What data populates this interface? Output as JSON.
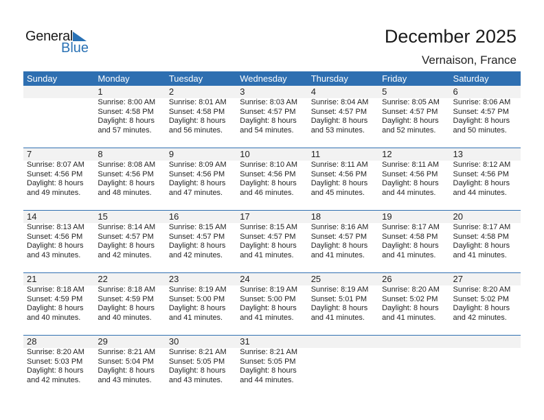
{
  "logo": {
    "word1": "General",
    "word2": "Blue"
  },
  "header": {
    "title": "December 2025",
    "location": "Vernaison, France"
  },
  "colors": {
    "header_bg": "#2e6fb1",
    "band_bg": "#f2f2f2",
    "logo_blue": "#2a72b5"
  },
  "weekdays": [
    "Sunday",
    "Monday",
    "Tuesday",
    "Wednesday",
    "Thursday",
    "Friday",
    "Saturday"
  ],
  "weeks": [
    [
      null,
      {
        "day": "1",
        "sunrise": "Sunrise: 8:00 AM",
        "sunset": "Sunset: 4:58 PM",
        "daylight": "Daylight: 8 hours",
        "minutes": "and 57 minutes."
      },
      {
        "day": "2",
        "sunrise": "Sunrise: 8:01 AM",
        "sunset": "Sunset: 4:58 PM",
        "daylight": "Daylight: 8 hours",
        "minutes": "and 56 minutes."
      },
      {
        "day": "3",
        "sunrise": "Sunrise: 8:03 AM",
        "sunset": "Sunset: 4:57 PM",
        "daylight": "Daylight: 8 hours",
        "minutes": "and 54 minutes."
      },
      {
        "day": "4",
        "sunrise": "Sunrise: 8:04 AM",
        "sunset": "Sunset: 4:57 PM",
        "daylight": "Daylight: 8 hours",
        "minutes": "and 53 minutes."
      },
      {
        "day": "5",
        "sunrise": "Sunrise: 8:05 AM",
        "sunset": "Sunset: 4:57 PM",
        "daylight": "Daylight: 8 hours",
        "minutes": "and 52 minutes."
      },
      {
        "day": "6",
        "sunrise": "Sunrise: 8:06 AM",
        "sunset": "Sunset: 4:57 PM",
        "daylight": "Daylight: 8 hours",
        "minutes": "and 50 minutes."
      }
    ],
    [
      {
        "day": "7",
        "sunrise": "Sunrise: 8:07 AM",
        "sunset": "Sunset: 4:56 PM",
        "daylight": "Daylight: 8 hours",
        "minutes": "and 49 minutes."
      },
      {
        "day": "8",
        "sunrise": "Sunrise: 8:08 AM",
        "sunset": "Sunset: 4:56 PM",
        "daylight": "Daylight: 8 hours",
        "minutes": "and 48 minutes."
      },
      {
        "day": "9",
        "sunrise": "Sunrise: 8:09 AM",
        "sunset": "Sunset: 4:56 PM",
        "daylight": "Daylight: 8 hours",
        "minutes": "and 47 minutes."
      },
      {
        "day": "10",
        "sunrise": "Sunrise: 8:10 AM",
        "sunset": "Sunset: 4:56 PM",
        "daylight": "Daylight: 8 hours",
        "minutes": "and 46 minutes."
      },
      {
        "day": "11",
        "sunrise": "Sunrise: 8:11 AM",
        "sunset": "Sunset: 4:56 PM",
        "daylight": "Daylight: 8 hours",
        "minutes": "and 45 minutes."
      },
      {
        "day": "12",
        "sunrise": "Sunrise: 8:11 AM",
        "sunset": "Sunset: 4:56 PM",
        "daylight": "Daylight: 8 hours",
        "minutes": "and 44 minutes."
      },
      {
        "day": "13",
        "sunrise": "Sunrise: 8:12 AM",
        "sunset": "Sunset: 4:56 PM",
        "daylight": "Daylight: 8 hours",
        "minutes": "and 44 minutes."
      }
    ],
    [
      {
        "day": "14",
        "sunrise": "Sunrise: 8:13 AM",
        "sunset": "Sunset: 4:56 PM",
        "daylight": "Daylight: 8 hours",
        "minutes": "and 43 minutes."
      },
      {
        "day": "15",
        "sunrise": "Sunrise: 8:14 AM",
        "sunset": "Sunset: 4:57 PM",
        "daylight": "Daylight: 8 hours",
        "minutes": "and 42 minutes."
      },
      {
        "day": "16",
        "sunrise": "Sunrise: 8:15 AM",
        "sunset": "Sunset: 4:57 PM",
        "daylight": "Daylight: 8 hours",
        "minutes": "and 42 minutes."
      },
      {
        "day": "17",
        "sunrise": "Sunrise: 8:15 AM",
        "sunset": "Sunset: 4:57 PM",
        "daylight": "Daylight: 8 hours",
        "minutes": "and 41 minutes."
      },
      {
        "day": "18",
        "sunrise": "Sunrise: 8:16 AM",
        "sunset": "Sunset: 4:57 PM",
        "daylight": "Daylight: 8 hours",
        "minutes": "and 41 minutes."
      },
      {
        "day": "19",
        "sunrise": "Sunrise: 8:17 AM",
        "sunset": "Sunset: 4:58 PM",
        "daylight": "Daylight: 8 hours",
        "minutes": "and 41 minutes."
      },
      {
        "day": "20",
        "sunrise": "Sunrise: 8:17 AM",
        "sunset": "Sunset: 4:58 PM",
        "daylight": "Daylight: 8 hours",
        "minutes": "and 41 minutes."
      }
    ],
    [
      {
        "day": "21",
        "sunrise": "Sunrise: 8:18 AM",
        "sunset": "Sunset: 4:59 PM",
        "daylight": "Daylight: 8 hours",
        "minutes": "and 40 minutes."
      },
      {
        "day": "22",
        "sunrise": "Sunrise: 8:18 AM",
        "sunset": "Sunset: 4:59 PM",
        "daylight": "Daylight: 8 hours",
        "minutes": "and 40 minutes."
      },
      {
        "day": "23",
        "sunrise": "Sunrise: 8:19 AM",
        "sunset": "Sunset: 5:00 PM",
        "daylight": "Daylight: 8 hours",
        "minutes": "and 41 minutes."
      },
      {
        "day": "24",
        "sunrise": "Sunrise: 8:19 AM",
        "sunset": "Sunset: 5:00 PM",
        "daylight": "Daylight: 8 hours",
        "minutes": "and 41 minutes."
      },
      {
        "day": "25",
        "sunrise": "Sunrise: 8:19 AM",
        "sunset": "Sunset: 5:01 PM",
        "daylight": "Daylight: 8 hours",
        "minutes": "and 41 minutes."
      },
      {
        "day": "26",
        "sunrise": "Sunrise: 8:20 AM",
        "sunset": "Sunset: 5:02 PM",
        "daylight": "Daylight: 8 hours",
        "minutes": "and 41 minutes."
      },
      {
        "day": "27",
        "sunrise": "Sunrise: 8:20 AM",
        "sunset": "Sunset: 5:02 PM",
        "daylight": "Daylight: 8 hours",
        "minutes": "and 42 minutes."
      }
    ],
    [
      {
        "day": "28",
        "sunrise": "Sunrise: 8:20 AM",
        "sunset": "Sunset: 5:03 PM",
        "daylight": "Daylight: 8 hours",
        "minutes": "and 42 minutes."
      },
      {
        "day": "29",
        "sunrise": "Sunrise: 8:21 AM",
        "sunset": "Sunset: 5:04 PM",
        "daylight": "Daylight: 8 hours",
        "minutes": "and 43 minutes."
      },
      {
        "day": "30",
        "sunrise": "Sunrise: 8:21 AM",
        "sunset": "Sunset: 5:05 PM",
        "daylight": "Daylight: 8 hours",
        "minutes": "and 43 minutes."
      },
      {
        "day": "31",
        "sunrise": "Sunrise: 8:21 AM",
        "sunset": "Sunset: 5:05 PM",
        "daylight": "Daylight: 8 hours",
        "minutes": "and 44 minutes."
      },
      null,
      null,
      null
    ]
  ]
}
